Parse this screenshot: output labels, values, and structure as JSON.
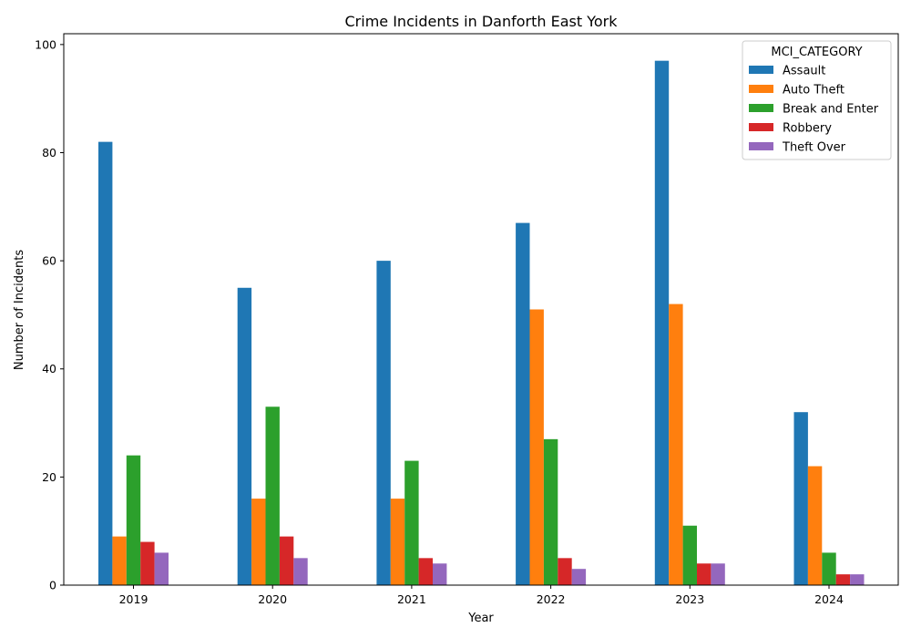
{
  "chart_data": {
    "type": "bar",
    "title": "Crime Incidents in Danforth East York",
    "xlabel": "Year",
    "ylabel": "Number of Incidents",
    "categories": [
      "2019",
      "2020",
      "2021",
      "2022",
      "2023",
      "2024"
    ],
    "ylim": [
      0,
      102
    ],
    "yticks": [
      0,
      20,
      40,
      60,
      80,
      100
    ],
    "grid": false,
    "legend": {
      "title": "MCI_CATEGORY",
      "placement": "top-right"
    },
    "series": [
      {
        "name": "Assault",
        "color": "#1f77b4",
        "values": [
          82,
          55,
          60,
          67,
          97,
          32
        ]
      },
      {
        "name": "Auto Theft",
        "color": "#ff7f0e",
        "values": [
          9,
          16,
          16,
          51,
          52,
          22
        ]
      },
      {
        "name": "Break and Enter",
        "color": "#2ca02c",
        "values": [
          24,
          33,
          23,
          27,
          11,
          6
        ]
      },
      {
        "name": "Robbery",
        "color": "#d62728",
        "values": [
          8,
          9,
          5,
          5,
          4,
          2
        ]
      },
      {
        "name": "Theft Over",
        "color": "#9467bd",
        "values": [
          6,
          5,
          4,
          3,
          4,
          2
        ]
      }
    ]
  }
}
